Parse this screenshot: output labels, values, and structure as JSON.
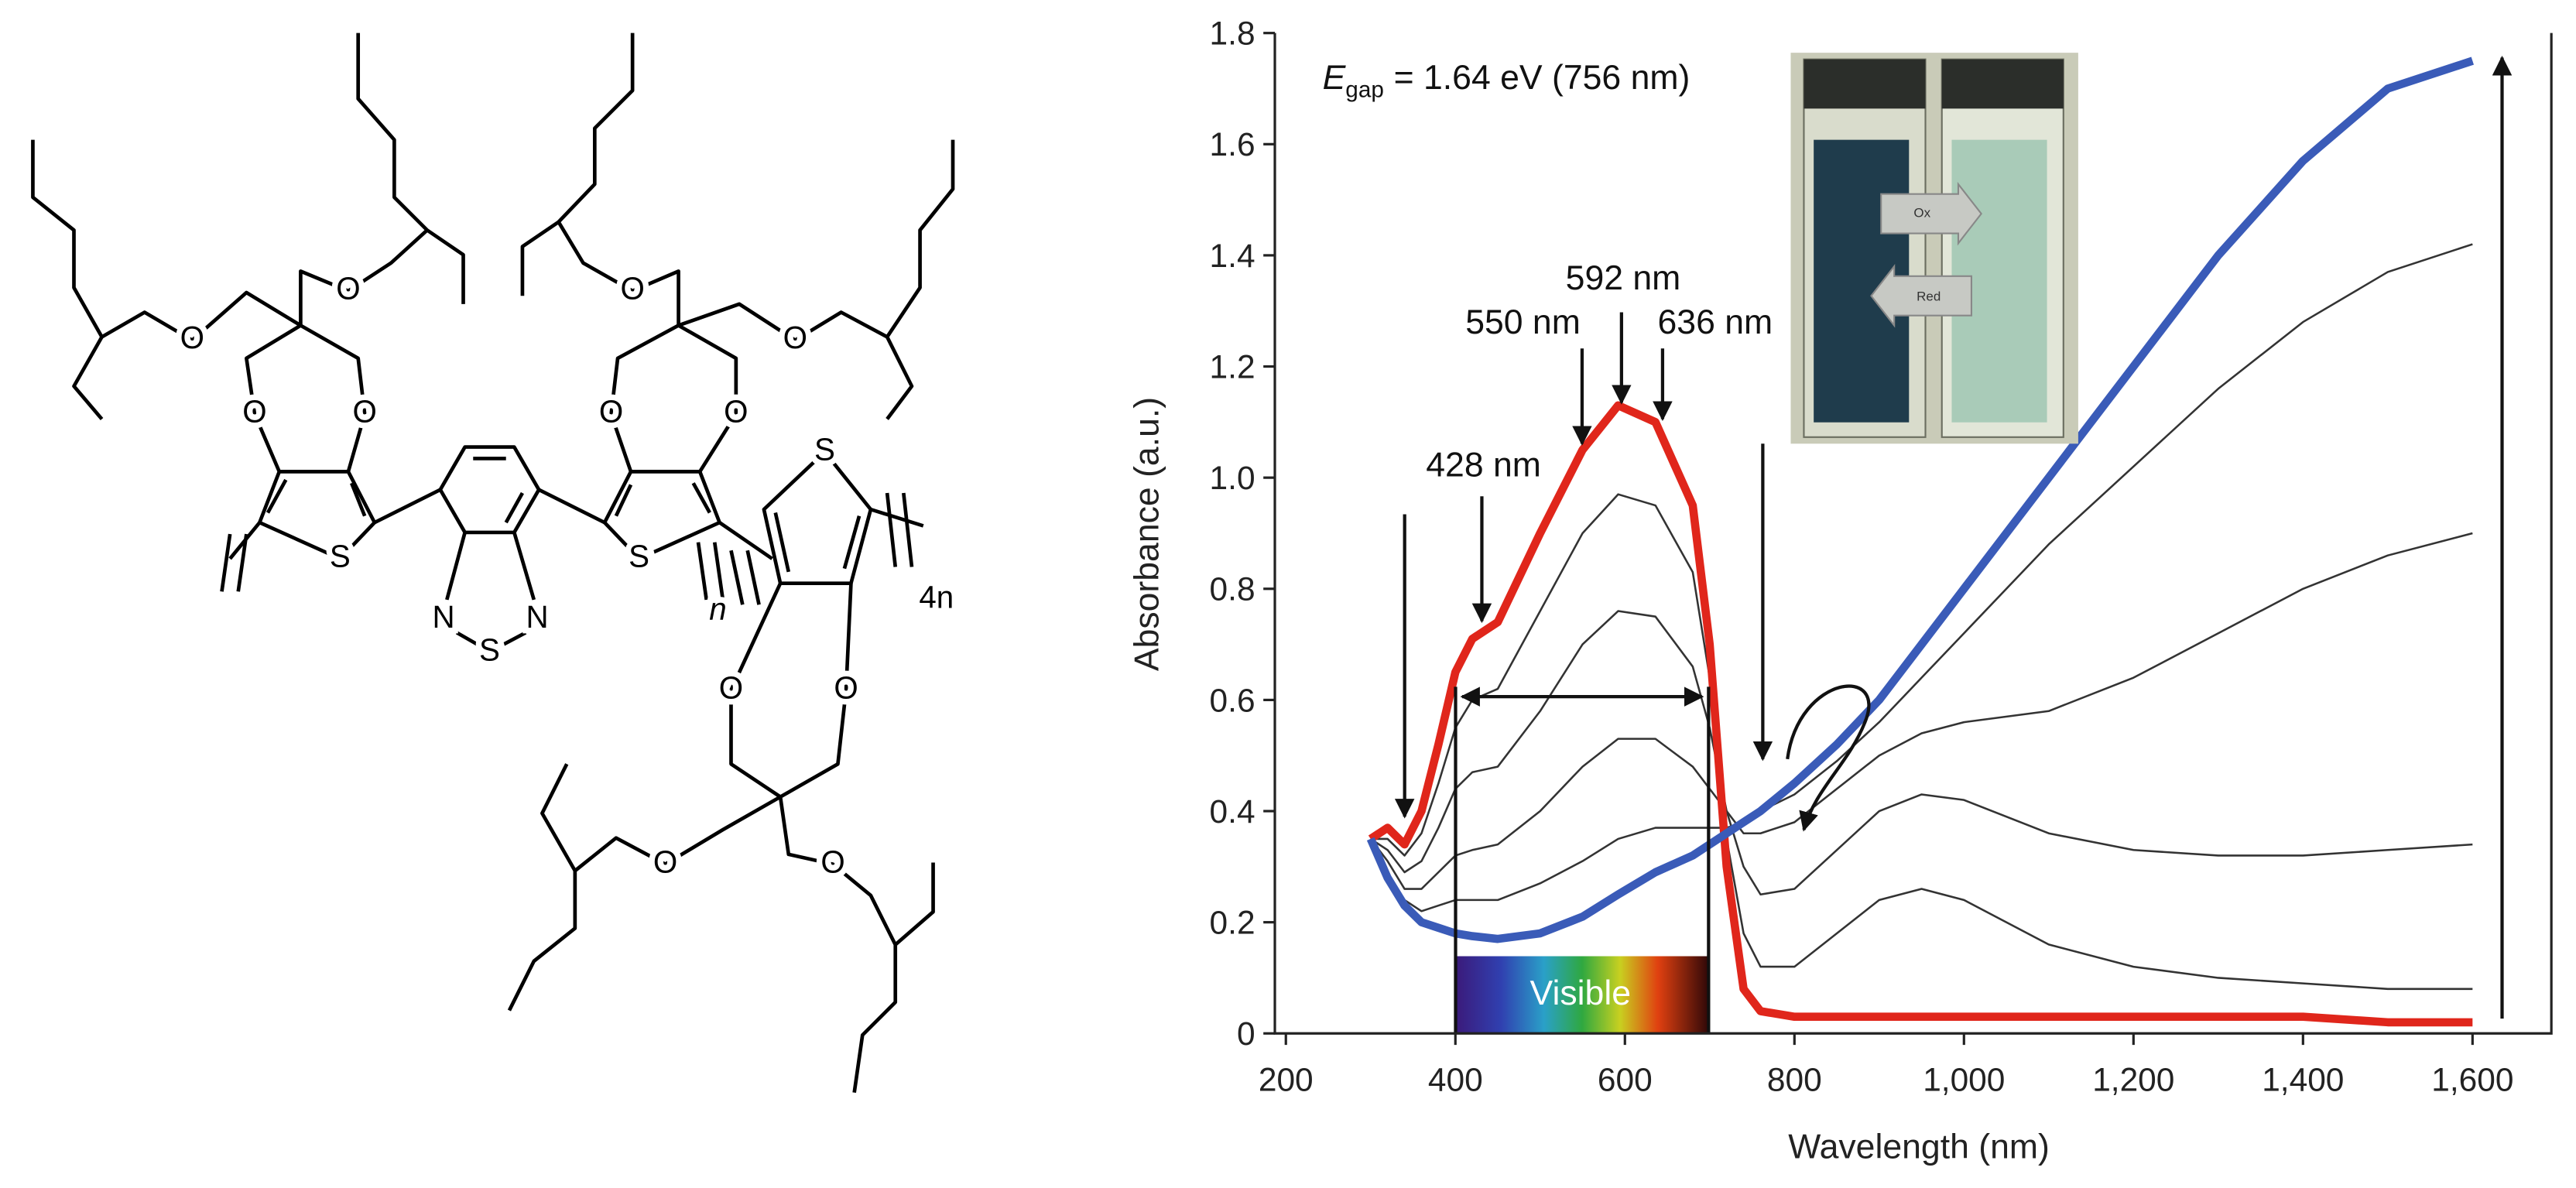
{
  "structure": {
    "labels": [
      "O",
      "O",
      "O",
      "O",
      "S",
      "N",
      "N",
      "S",
      "O",
      "O",
      "O",
      "O",
      "S",
      "n",
      "S",
      "O",
      "O",
      "O",
      "O",
      "4n"
    ]
  },
  "chart_data": {
    "type": "line",
    "x_label": "Wavelength (nm)",
    "y_label": "Absorbance (a.u.)",
    "annotations": {
      "egap": {
        "symbol": "E",
        "subscript": "gap",
        "text": "= 1.64 eV (756 nm)"
      },
      "peaks": [
        "428 nm",
        "550 nm",
        "592 nm",
        "636 nm"
      ],
      "band": "Visible",
      "inset": [
        "Ox",
        "Red"
      ]
    },
    "x": [
      300,
      320,
      340,
      360,
      380,
      400,
      420,
      450,
      500,
      550,
      592,
      636,
      680,
      700,
      720,
      740,
      760,
      800,
      850,
      900,
      950,
      1000,
      1100,
      1200,
      1300,
      1400,
      1500,
      1600
    ],
    "series": [
      {
        "color": "#333333",
        "values": [
          0.35,
          0.35,
          0.32,
          0.36,
          0.45,
          0.55,
          0.6,
          0.62,
          0.76,
          0.9,
          0.97,
          0.95,
          0.83,
          0.64,
          0.35,
          0.18,
          0.12,
          0.12,
          0.18,
          0.24,
          0.26,
          0.24,
          0.16,
          0.12,
          0.1,
          0.09,
          0.08,
          0.08
        ]
      },
      {
        "color": "#333333",
        "values": [
          0.35,
          0.33,
          0.29,
          0.31,
          0.37,
          0.44,
          0.47,
          0.48,
          0.58,
          0.7,
          0.76,
          0.75,
          0.66,
          0.55,
          0.4,
          0.3,
          0.25,
          0.26,
          0.33,
          0.4,
          0.43,
          0.42,
          0.36,
          0.33,
          0.32,
          0.32,
          0.33,
          0.34
        ]
      },
      {
        "color": "#333333",
        "values": [
          0.35,
          0.31,
          0.26,
          0.26,
          0.29,
          0.32,
          0.33,
          0.34,
          0.4,
          0.48,
          0.53,
          0.53,
          0.48,
          0.44,
          0.4,
          0.36,
          0.36,
          0.38,
          0.44,
          0.5,
          0.54,
          0.56,
          0.58,
          0.64,
          0.72,
          0.8,
          0.86,
          0.9
        ]
      },
      {
        "color": "#333333",
        "values": [
          0.35,
          0.29,
          0.24,
          0.22,
          0.23,
          0.24,
          0.24,
          0.24,
          0.27,
          0.31,
          0.35,
          0.37,
          0.37,
          0.37,
          0.37,
          0.38,
          0.4,
          0.43,
          0.49,
          0.56,
          0.64,
          0.72,
          0.88,
          1.02,
          1.16,
          1.28,
          1.37,
          1.42
        ]
      },
      {
        "color": "#e0261b",
        "values": [
          0.35,
          0.37,
          0.34,
          0.4,
          0.52,
          0.65,
          0.71,
          0.74,
          0.9,
          1.05,
          1.13,
          1.1,
          0.95,
          0.7,
          0.3,
          0.08,
          0.04,
          0.03,
          0.03,
          0.03,
          0.03,
          0.03,
          0.03,
          0.03,
          0.03,
          0.03,
          0.02,
          0.02
        ]
      },
      {
        "color": "#3a5bb8",
        "values": [
          0.35,
          0.28,
          0.23,
          0.2,
          0.19,
          0.18,
          0.175,
          0.17,
          0.18,
          0.21,
          0.25,
          0.29,
          0.32,
          0.34,
          0.36,
          0.38,
          0.4,
          0.45,
          0.52,
          0.6,
          0.7,
          0.8,
          1.0,
          1.2,
          1.4,
          1.57,
          1.7,
          1.75
        ]
      }
    ],
    "xlim": [
      187,
      1693
    ],
    "ylim": [
      0,
      1.8
    ],
    "xticks": [
      200,
      400,
      600,
      800,
      {
        "value": 1000,
        "label": "1,000"
      },
      {
        "value": 1200,
        "label": "1,200"
      },
      {
        "value": 1400,
        "label": "1,400"
      },
      {
        "value": 1600,
        "label": "1,600"
      }
    ],
    "yticks": [
      0,
      0.2,
      0.4,
      0.6,
      0.8,
      {
        "value": 1,
        "label": "1.0"
      },
      1.2,
      1.4,
      1.6,
      1.8
    ]
  }
}
